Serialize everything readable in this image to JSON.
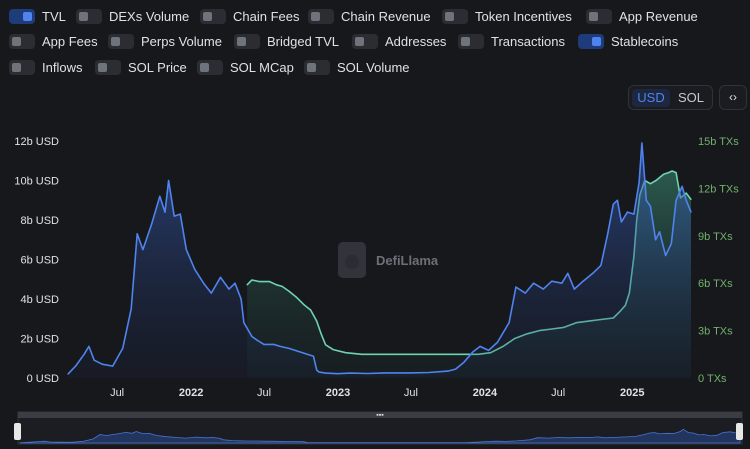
{
  "toggles": [
    {
      "label": "TVL",
      "on": true
    },
    {
      "label": "DEXs Volume",
      "on": false
    },
    {
      "label": "Chain Fees",
      "on": false
    },
    {
      "label": "Chain Revenue",
      "on": false
    },
    {
      "label": "Token Incentives",
      "on": false
    },
    {
      "label": "App Revenue",
      "on": false
    },
    {
      "label": "App Fees",
      "on": false
    },
    {
      "label": "Perps Volume",
      "on": false
    },
    {
      "label": "Bridged TVL",
      "on": false
    },
    {
      "label": "Addresses",
      "on": false
    },
    {
      "label": "Transactions",
      "on": false
    },
    {
      "label": "Stablecoins",
      "on": true
    },
    {
      "label": "Inflows",
      "on": false
    },
    {
      "label": "SOL Price",
      "on": false
    },
    {
      "label": "SOL MCap",
      "on": false
    },
    {
      "label": "SOL Volume",
      "on": false
    }
  ],
  "unit_toggle": {
    "options": [
      "USD",
      "SOL"
    ],
    "selected": "USD"
  },
  "embed_label": "‹›",
  "watermark": "DefiLlama",
  "colors": {
    "tvl": "#4f84ee",
    "stablecoins": "#6ed3b0",
    "right_axis": "#6fb26a",
    "accent": "#4f84ee"
  },
  "chart_data": {
    "type": "line",
    "x_ticks": [
      "Jul",
      "2022",
      "Jul",
      "2023",
      "Jul",
      "2024",
      "Jul",
      "2025"
    ],
    "y_left": {
      "ticks": [
        "0 USD",
        "2b USD",
        "4b USD",
        "6b USD",
        "8b USD",
        "10b USD",
        "12b USD"
      ],
      "range": [
        0,
        12
      ]
    },
    "y_right": {
      "ticks": [
        "0 TXs",
        "3b TXs",
        "6b TXs",
        "9b TXs",
        "12b TXs",
        "15b TXs"
      ],
      "range": [
        0,
        15
      ]
    },
    "x_range": [
      "2021-03-01",
      "2025-05-27"
    ],
    "series": [
      {
        "name": "TVL",
        "x": [
          "2021-03-01",
          "2021-03-20",
          "2021-04-10",
          "2021-04-22",
          "2021-05-05",
          "2021-05-25",
          "2021-06-20",
          "2021-07-15",
          "2021-08-05",
          "2021-08-20",
          "2021-09-03",
          "2021-09-25",
          "2021-10-15",
          "2021-10-28",
          "2021-11-06",
          "2021-11-20",
          "2021-12-05",
          "2021-12-20",
          "2022-01-10",
          "2022-02-01",
          "2022-02-20",
          "2022-03-15",
          "2022-04-05",
          "2022-04-20",
          "2022-05-05",
          "2022-05-12",
          "2022-06-01",
          "2022-06-15",
          "2022-07-01",
          "2022-07-25",
          "2022-08-10",
          "2022-09-01",
          "2022-10-01",
          "2022-11-01",
          "2022-11-09",
          "2022-11-15",
          "2022-12-01",
          "2022-12-31",
          "2023-02-01",
          "2023-03-15",
          "2023-05-01",
          "2023-07-01",
          "2023-08-15",
          "2023-10-01",
          "2023-10-20",
          "2023-11-10",
          "2023-12-01",
          "2023-12-20",
          "2024-01-10",
          "2024-02-01",
          "2024-03-01",
          "2024-03-18",
          "2024-04-10",
          "2024-05-01",
          "2024-05-25",
          "2024-06-15",
          "2024-07-10",
          "2024-07-25",
          "2024-08-10",
          "2024-09-01",
          "2024-09-25",
          "2024-10-15",
          "2024-11-01",
          "2024-11-15",
          "2024-11-25",
          "2024-12-05",
          "2024-12-20",
          "2025-01-05",
          "2025-01-18",
          "2025-01-25",
          "2025-02-05",
          "2025-02-15",
          "2025-02-28",
          "2025-03-10",
          "2025-03-25",
          "2025-04-08",
          "2025-04-20",
          "2025-05-05",
          "2025-05-15",
          "2025-05-27"
        ],
        "values": [
          0.2,
          0.6,
          1.2,
          1.6,
          0.9,
          0.7,
          0.6,
          1.5,
          3.5,
          7.3,
          6.5,
          7.8,
          9.2,
          8.4,
          10.0,
          8.2,
          8.3,
          6.5,
          5.5,
          4.8,
          4.3,
          5.1,
          4.5,
          4.8,
          4.0,
          2.8,
          2.1,
          1.9,
          1.7,
          1.7,
          1.6,
          1.5,
          1.3,
          1.1,
          0.4,
          0.3,
          0.25,
          0.22,
          0.25,
          0.23,
          0.26,
          0.26,
          0.28,
          0.35,
          0.45,
          0.8,
          1.3,
          1.6,
          1.4,
          1.8,
          2.8,
          4.6,
          4.3,
          4.8,
          4.5,
          4.9,
          4.8,
          5.3,
          4.5,
          4.9,
          5.3,
          5.7,
          7.3,
          8.8,
          9.0,
          7.9,
          8.4,
          8.3,
          9.9,
          11.9,
          9.0,
          8.7,
          7.0,
          7.4,
          6.2,
          6.8,
          9.0,
          9.7,
          9.0,
          8.4
        ]
      },
      {
        "name": "Stablecoins",
        "x": [
          "2022-05-20",
          "2022-06-01",
          "2022-06-20",
          "2022-07-15",
          "2022-08-01",
          "2022-08-15",
          "2022-09-01",
          "2022-09-20",
          "2022-10-10",
          "2022-10-25",
          "2022-11-09",
          "2022-11-20",
          "2022-12-01",
          "2022-12-20",
          "2023-01-20",
          "2023-03-01",
          "2023-05-01",
          "2023-07-01",
          "2023-08-15",
          "2023-10-01",
          "2023-11-15",
          "2023-12-15",
          "2024-01-15",
          "2024-02-15",
          "2024-03-15",
          "2024-04-15",
          "2024-05-15",
          "2024-06-15",
          "2024-07-15",
          "2024-08-15",
          "2024-09-15",
          "2024-10-15",
          "2024-11-15",
          "2024-12-01",
          "2024-12-15",
          "2024-12-25",
          "2025-01-05",
          "2025-01-12",
          "2025-01-20",
          "2025-02-01",
          "2025-02-15",
          "2025-03-01",
          "2025-03-20",
          "2025-04-01",
          "2025-04-10",
          "2025-04-20",
          "2025-05-01",
          "2025-05-15",
          "2025-05-27"
        ],
        "values": [
          5.9,
          6.2,
          6.1,
          6.1,
          5.9,
          5.8,
          5.5,
          5.1,
          4.6,
          4.3,
          3.6,
          2.8,
          2.1,
          1.8,
          1.6,
          1.5,
          1.5,
          1.5,
          1.5,
          1.5,
          1.5,
          1.5,
          1.6,
          2.0,
          2.5,
          2.8,
          3.0,
          3.1,
          3.2,
          3.5,
          3.6,
          3.7,
          3.8,
          4.2,
          4.6,
          5.4,
          7.7,
          10.0,
          11.6,
          12.5,
          12.3,
          12.5,
          12.9,
          13.0,
          13.1,
          13.0,
          11.4,
          11.7,
          11.3
        ]
      }
    ]
  }
}
